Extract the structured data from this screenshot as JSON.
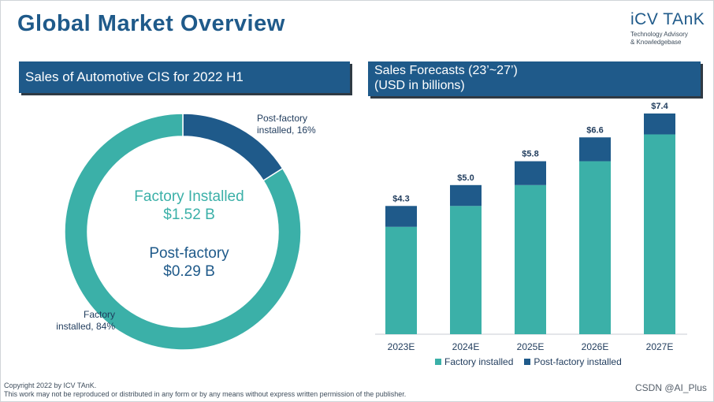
{
  "page": {
    "title": "Global Market Overview",
    "logo_main": "iCV TAnK",
    "logo_sub_1": "Technology Advisory",
    "logo_sub_2": "& Knowledgebase"
  },
  "left_panel": {
    "title": "Sales of Automotive CIS for 2022 H1",
    "center_top_1": "Factory Installed",
    "center_top_2": "$1.52 B",
    "center_bottom_1": "Post-factory",
    "center_bottom_2": "$0.29 B",
    "callout_post_1": "Post-factory",
    "callout_post_2": "installed, 16%",
    "callout_factory_1": "Factory",
    "callout_factory_2": "installed, 84%"
  },
  "right_panel": {
    "title_1": "Sales Forecasts (23’~27’)",
    "title_2": "(USD in billions)"
  },
  "legend": {
    "factory": "Factory installed",
    "post": "Post-factory installed"
  },
  "colors": {
    "factory": "#3bb0a8",
    "post": "#1f5a8a"
  },
  "footer": {
    "line1": "Copyright  2022 by ICV TAnK.",
    "line2": "This work may not be reproduced or distributed in any form or by any means without express written permission of the publisher."
  },
  "watermark": "CSDN @AI_Plus",
  "chart_data": [
    {
      "type": "pie",
      "title": "Sales of Automotive CIS for 2022 H1",
      "categories": [
        "Factory installed",
        "Post-factory installed"
      ],
      "values": [
        84,
        16
      ],
      "amounts_billion_usd": [
        1.52,
        0.29
      ]
    },
    {
      "type": "bar",
      "stacked": true,
      "title": "Sales Forecasts (23’~27’) (USD in billions)",
      "categories": [
        "2023E",
        "2024E",
        "2025E",
        "2026E",
        "2027E"
      ],
      "series": [
        {
          "name": "Factory installed",
          "values": [
            3.6,
            4.3,
            5.0,
            5.8,
            6.7
          ]
        },
        {
          "name": "Post-factory installed",
          "values": [
            0.7,
            0.7,
            0.8,
            0.8,
            0.7
          ]
        }
      ],
      "totals": [
        "$4.3",
        "$5.0",
        "$5.8",
        "$6.6",
        "$7.4"
      ],
      "ylim": [
        0,
        7.4
      ],
      "legend": "bottom"
    }
  ]
}
